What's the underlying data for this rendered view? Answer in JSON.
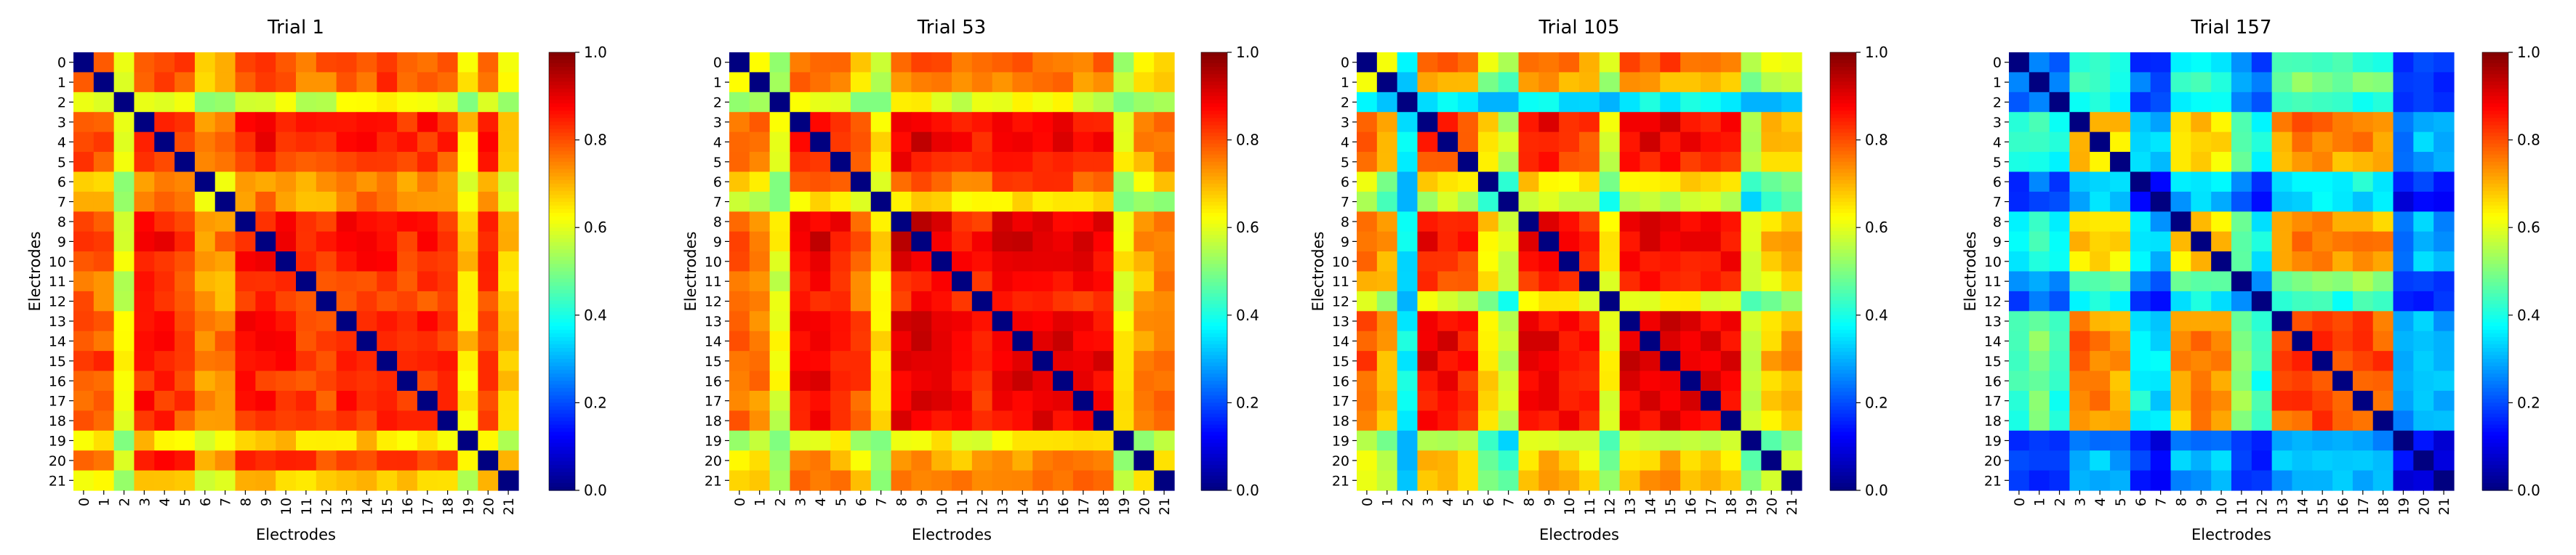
{
  "figure": {
    "colormap": "jet",
    "panels": [
      {
        "title": "Trial 1"
      },
      {
        "title": "Trial 53"
      },
      {
        "title": "Trial 105"
      },
      {
        "title": "Trial 157"
      }
    ],
    "xlabel": "Electrodes",
    "ylabel": "Electrodes",
    "colorbar_ticks": [
      "0.0",
      "0.2",
      "0.4",
      "0.6",
      "0.8",
      "1.0"
    ]
  },
  "chart_data": [
    {
      "type": "heatmap",
      "title": "Trial 1",
      "xlabel": "Electrodes",
      "ylabel": "Electrodes",
      "x_ticks": [
        "0",
        "1",
        "2",
        "3",
        "4",
        "5",
        "6",
        "7",
        "8",
        "9",
        "10",
        "11",
        "12",
        "13",
        "14",
        "15",
        "16",
        "17",
        "18",
        "19",
        "20",
        "21"
      ],
      "y_ticks": [
        "0",
        "1",
        "2",
        "3",
        "4",
        "5",
        "6",
        "7",
        "8",
        "9",
        "10",
        "11",
        "12",
        "13",
        "14",
        "15",
        "16",
        "17",
        "18",
        "19",
        "20",
        "21"
      ],
      "vmin": 0.0,
      "vmax": 1.0,
      "colormap": "jet",
      "colorbar_ticks": [
        0.0,
        0.2,
        0.4,
        0.6,
        0.8,
        1.0
      ],
      "approx_values": {
        "diagonal": 0.0,
        "base": 0.82,
        "electrode_factors": [
          0.97,
          0.95,
          0.72,
          1.03,
          1.02,
          1.0,
          0.88,
          0.9,
          1.02,
          1.03,
          1.02,
          0.98,
          0.97,
          1.03,
          1.02,
          1.03,
          1.0,
          1.0,
          0.98,
          0.8,
          1.0,
          0.82
        ],
        "clip": [
          0.5,
          0.99
        ]
      }
    },
    {
      "type": "heatmap",
      "title": "Trial 53",
      "xlabel": "Electrodes",
      "ylabel": "Electrodes",
      "x_ticks": [
        "0",
        "1",
        "2",
        "3",
        "4",
        "5",
        "6",
        "7",
        "8",
        "9",
        "10",
        "11",
        "12",
        "13",
        "14",
        "15",
        "16",
        "17",
        "18",
        "19",
        "20",
        "21"
      ],
      "y_ticks": [
        "0",
        "1",
        "2",
        "3",
        "4",
        "5",
        "6",
        "7",
        "8",
        "9",
        "10",
        "11",
        "12",
        "13",
        "14",
        "15",
        "16",
        "17",
        "18",
        "19",
        "20",
        "21"
      ],
      "vmin": 0.0,
      "vmax": 1.0,
      "colormap": "jet",
      "colorbar_ticks": [
        0.0,
        0.2,
        0.4,
        0.6,
        0.8,
        1.0
      ],
      "approx_values": {
        "diagonal": 0.0,
        "base": 0.83,
        "electrode_factors": [
          0.9,
          0.88,
          0.7,
          1.03,
          1.03,
          1.0,
          0.92,
          0.75,
          1.04,
          1.05,
          1.04,
          1.0,
          0.98,
          1.04,
          1.05,
          1.05,
          1.04,
          1.03,
          1.02,
          0.74,
          0.85,
          0.88
        ],
        "clip": [
          0.5,
          0.99
        ]
      }
    },
    {
      "type": "heatmap",
      "title": "Trial 105",
      "xlabel": "Electrodes",
      "ylabel": "Electrodes",
      "x_ticks": [
        "0",
        "1",
        "2",
        "3",
        "4",
        "5",
        "6",
        "7",
        "8",
        "9",
        "10",
        "11",
        "12",
        "13",
        "14",
        "15",
        "16",
        "17",
        "18",
        "19",
        "20",
        "21"
      ],
      "y_ticks": [
        "0",
        "1",
        "2",
        "3",
        "4",
        "5",
        "6",
        "7",
        "8",
        "9",
        "10",
        "11",
        "12",
        "13",
        "14",
        "15",
        "16",
        "17",
        "18",
        "19",
        "20",
        "21"
      ],
      "vmin": 0.0,
      "vmax": 1.0,
      "colormap": "jet",
      "colorbar_ticks": [
        0.0,
        0.2,
        0.4,
        0.6,
        0.8,
        1.0
      ],
      "approx_values": {
        "diagonal": 0.0,
        "base": 0.78,
        "electrode_factors": [
          0.95,
          0.85,
          0.45,
          1.05,
          1.05,
          1.0,
          0.8,
          0.68,
          1.05,
          1.07,
          1.05,
          1.0,
          0.75,
          1.07,
          1.08,
          1.08,
          1.07,
          1.06,
          1.05,
          0.7,
          0.82,
          0.85
        ],
        "clip": [
          0.3,
          0.99
        ]
      }
    },
    {
      "type": "heatmap",
      "title": "Trial 157",
      "xlabel": "Electrodes",
      "ylabel": "Electrodes",
      "x_ticks": [
        "0",
        "1",
        "2",
        "3",
        "4",
        "5",
        "6",
        "7",
        "8",
        "9",
        "10",
        "11",
        "12",
        "13",
        "14",
        "15",
        "16",
        "17",
        "18",
        "19",
        "20",
        "21"
      ],
      "y_ticks": [
        "0",
        "1",
        "2",
        "3",
        "4",
        "5",
        "6",
        "7",
        "8",
        "9",
        "10",
        "11",
        "12",
        "13",
        "14",
        "15",
        "16",
        "17",
        "18",
        "19",
        "20",
        "21"
      ],
      "vmin": 0.0,
      "vmax": 1.0,
      "colormap": "jet",
      "colorbar_ticks": [
        0.0,
        0.2,
        0.4,
        0.6,
        0.8,
        1.0
      ],
      "approx_values": {
        "diagonal": 0.0,
        "base": 0.58,
        "electrode_factors": [
          0.62,
          0.7,
          0.6,
          1.1,
          1.1,
          1.05,
          0.55,
          0.5,
          1.05,
          1.1,
          1.05,
          0.75,
          0.6,
          1.15,
          1.2,
          1.2,
          1.15,
          1.2,
          1.15,
          0.4,
          0.5,
          0.45
        ],
        "clip": [
          0.05,
          0.99
        ]
      }
    }
  ]
}
